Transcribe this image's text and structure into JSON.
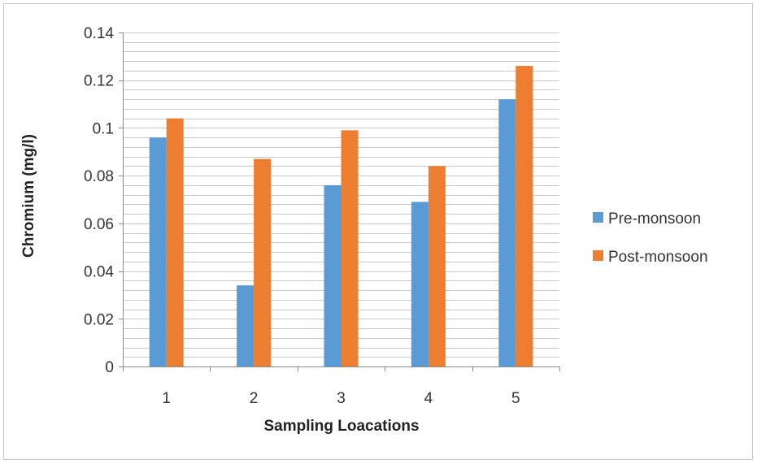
{
  "chart_data": {
    "type": "bar",
    "title": "",
    "xlabel": "Sampling Loacations",
    "ylabel": "Chromium   (mg/l)",
    "categories": [
      "1",
      "2",
      "3",
      "4",
      "5"
    ],
    "series": [
      {
        "name": "Pre-monsoon",
        "color": "#5b9bd5",
        "values": [
          0.096,
          0.034,
          0.076,
          0.069,
          0.112
        ]
      },
      {
        "name": "Post-monsoon",
        "color": "#ed7d31",
        "values": [
          0.104,
          0.087,
          0.099,
          0.084,
          0.126
        ]
      }
    ],
    "ylim": [
      0,
      0.14
    ],
    "yticks": [
      "0",
      "0.02",
      "0.04",
      "0.06",
      "0.08",
      "0.1",
      "0.12",
      "0.14"
    ],
    "minor_grid_step": 0.004,
    "grid": true,
    "legend_position": "right"
  }
}
